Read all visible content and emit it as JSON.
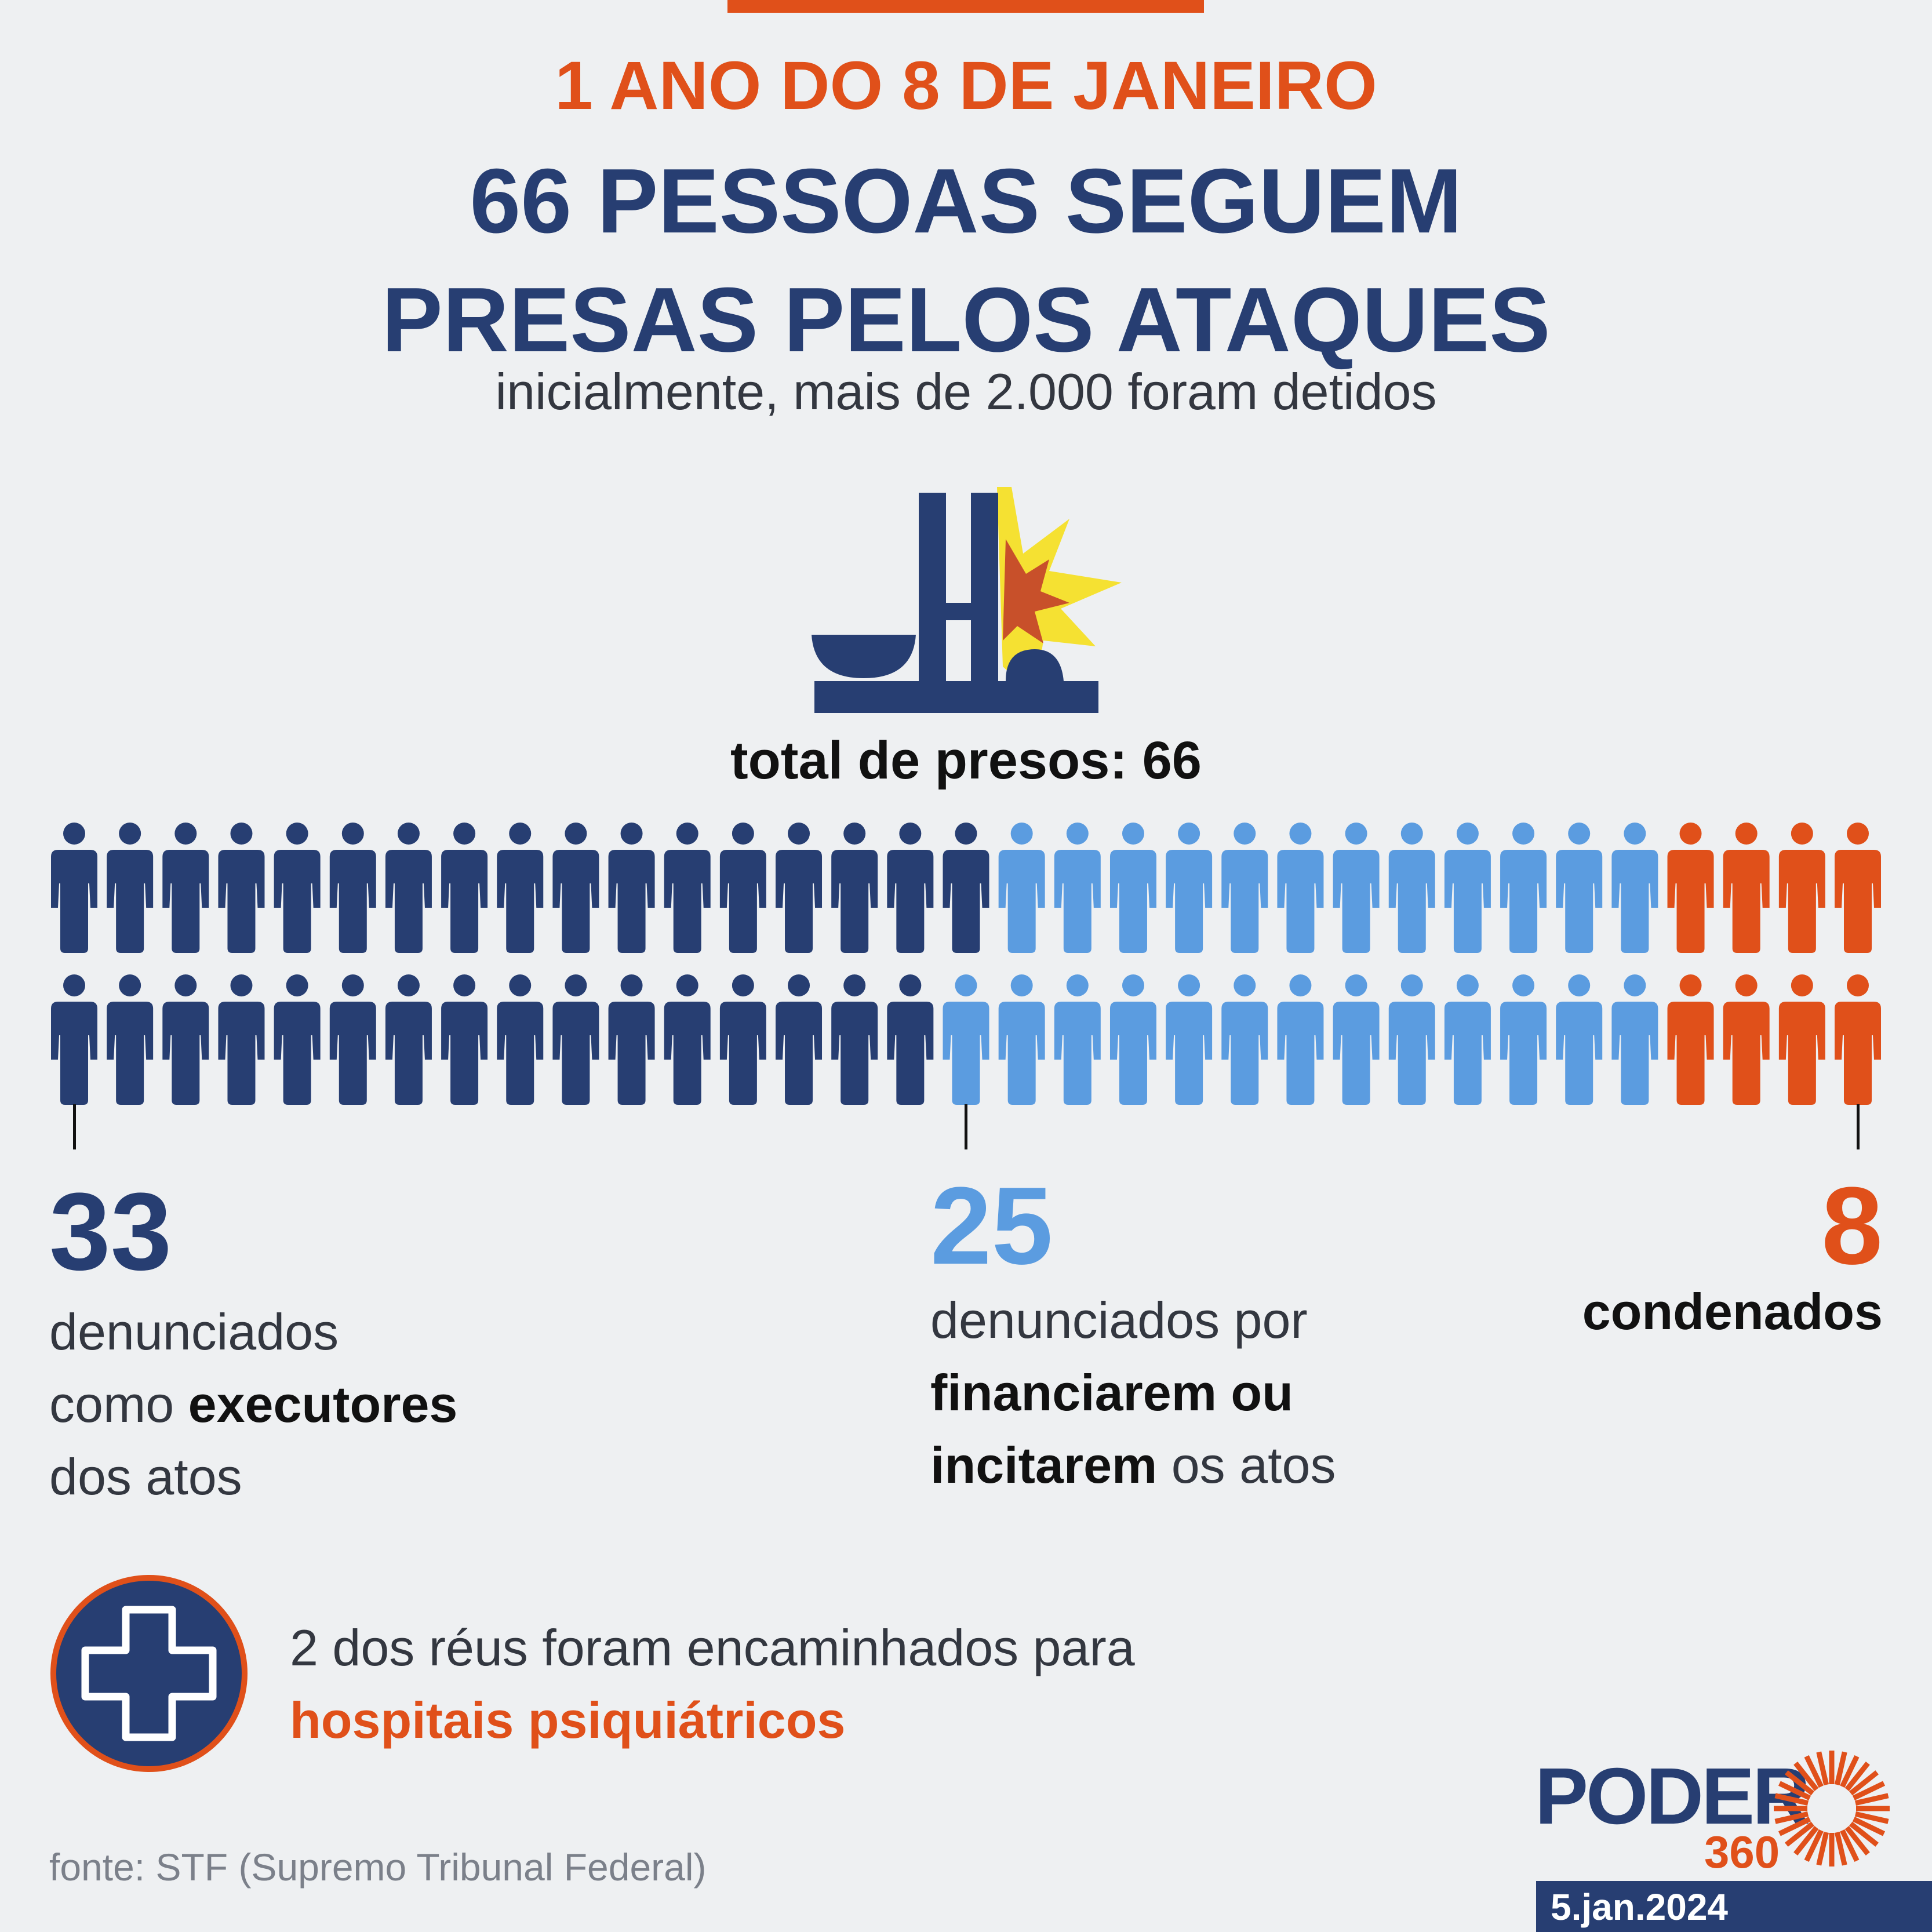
{
  "kicker": "1 ANO DO 8 DE JANEIRO",
  "headline_line1": "66 PESSOAS SEGUEM",
  "headline_line2": "PRESAS PELOS ATAQUES",
  "subtitle": "inicialmente, mais de 2.000 foram detidos",
  "total_label": "total de presos: 66",
  "colors": {
    "dark_blue": "#273e72",
    "light_blue": "#5b9ce0",
    "orange": "#e0501a",
    "yellow": "#f5e132",
    "red_burst": "#c8502a"
  },
  "icons": {
    "illustration": "congress-building-explosion-icon",
    "person": "person-icon",
    "hospital": "hospital-cross-icon",
    "logo": "poder360-logo"
  },
  "groups": [
    {
      "count": 33,
      "number": "33",
      "color": "#273e72",
      "desc_plain1": "denunciados",
      "desc_plain2": "como ",
      "desc_bold": "executores",
      "desc_plain3": "dos atos"
    },
    {
      "count": 25,
      "number": "25",
      "color": "#5b9ce0",
      "desc_plain1": "denunciados por",
      "desc_bold1": "financiarem ou",
      "desc_bold2": "incitarem",
      "desc_plain2": " os atos"
    },
    {
      "count": 8,
      "number": "8",
      "color": "#e0501a",
      "desc_bold": "condenados"
    }
  ],
  "note_line1": "2 dos réus foram encaminhados para",
  "note_line2": "hospitais psiquiátricos",
  "source": "fonte: STF (Supremo Tribunal Federal)",
  "brand_word": "PODER",
  "brand_number": "360",
  "date": "5.jan.2024"
}
